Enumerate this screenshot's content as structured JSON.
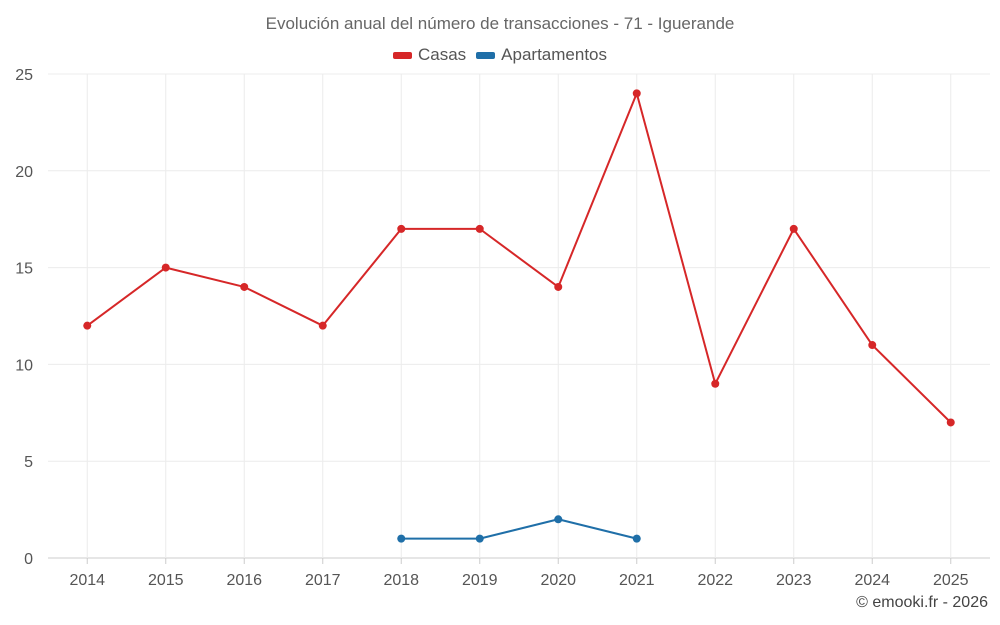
{
  "chart_data": {
    "type": "line",
    "title": "Evolución anual del número de transacciones - 71 - Iguerande",
    "categories": [
      "2014",
      "2015",
      "2016",
      "2017",
      "2018",
      "2019",
      "2020",
      "2021",
      "2022",
      "2023",
      "2024",
      "2025"
    ],
    "ylim": [
      0,
      25
    ],
    "yticks": [
      0,
      5,
      10,
      15,
      20,
      25
    ],
    "grid": true,
    "legend_position": "top-center",
    "series": [
      {
        "name": "Casas",
        "color": "#d62728",
        "values": [
          12,
          15,
          14,
          12,
          17,
          17,
          14,
          24,
          9,
          17,
          11,
          7
        ]
      },
      {
        "name": "Apartamentos",
        "color": "#1f6fa8",
        "values": [
          null,
          null,
          null,
          null,
          1,
          1,
          2,
          1,
          null,
          null,
          null,
          null
        ]
      }
    ]
  },
  "credit": "© emooki.fr - 2026"
}
